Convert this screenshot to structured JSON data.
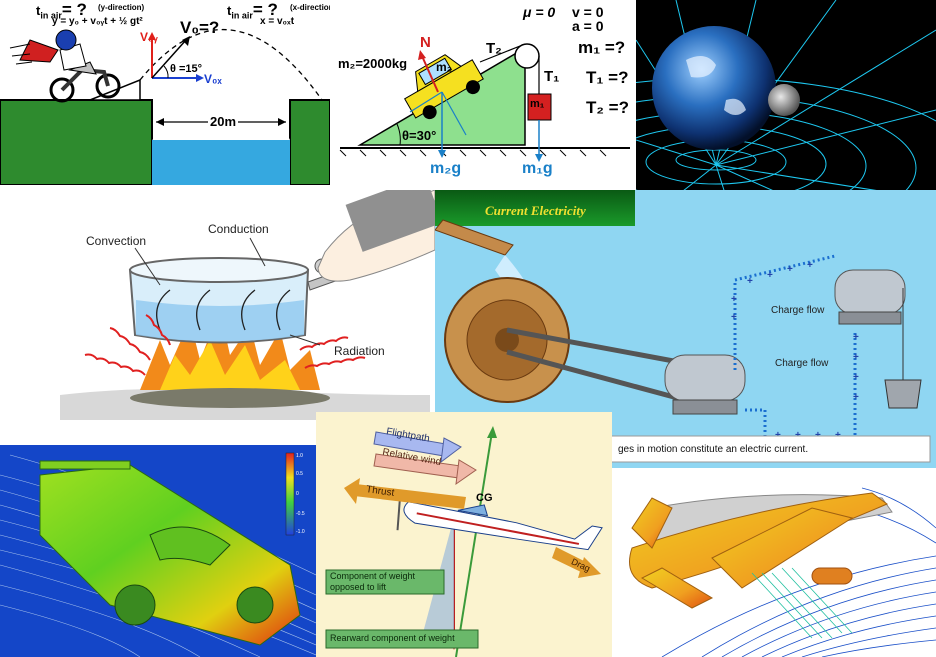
{
  "motorcycle": {
    "t_air_y": "t",
    "t_air_y_sub": "in air",
    "t_air_y_eq": "= ?",
    "y_direction": "(y-direction)",
    "y_equation": "y = y₀ + v₀ᵧt + ½ gt²",
    "t_air_x": "t",
    "t_air_x_sub": "in air",
    "t_air_x_eq": "= ?",
    "x_direction": "(x-direction)",
    "x_equation": "x = v₀ₓt",
    "v0_label": "V₀=?",
    "v0y_label": "V₀ᵧ",
    "v0x_label": "V₀ₓ",
    "theta_label": "θ =15°",
    "distance_label": "20m"
  },
  "incline": {
    "mu_label": "μ = 0",
    "v_label": "v = 0",
    "a_label": "a = 0",
    "m2_mass": "m₂=2000kg",
    "m2_block": "m₂",
    "m1_block": "m₁",
    "N_label": "N",
    "T2_label": "T₂",
    "T1_label": "T₁",
    "theta_label": "θ=30°",
    "m2g_label": "m₂g",
    "m1g_label": "m₁g",
    "m1_q": "m₁ =?",
    "T1_q": "T₁ =?",
    "T2_q": "T₂ =?"
  },
  "heat": {
    "convection": "Convection",
    "conduction": "Conduction",
    "radiation": "Radiation"
  },
  "current": {
    "title": "Current Electricity",
    "charge_flow_1": "Charge flow",
    "charge_flow_2": "Charge flow",
    "caption": "ges in motion constitute an electric current."
  },
  "airplane": {
    "flightpath": "Flightpath",
    "relative_wind": "Relative wind",
    "thrust": "Thrust",
    "cg": "CG",
    "drag": "Drag",
    "component_weight": "Component of weight opposed to lift",
    "rearward_weight": "Rearward component of weight"
  },
  "colors": {
    "grass": "#2e8b2e",
    "water": "#35a8e0",
    "slope": "#8ee08e",
    "blue_accent": "#1a6fd0",
    "cfd_bg": "#1446c8"
  }
}
